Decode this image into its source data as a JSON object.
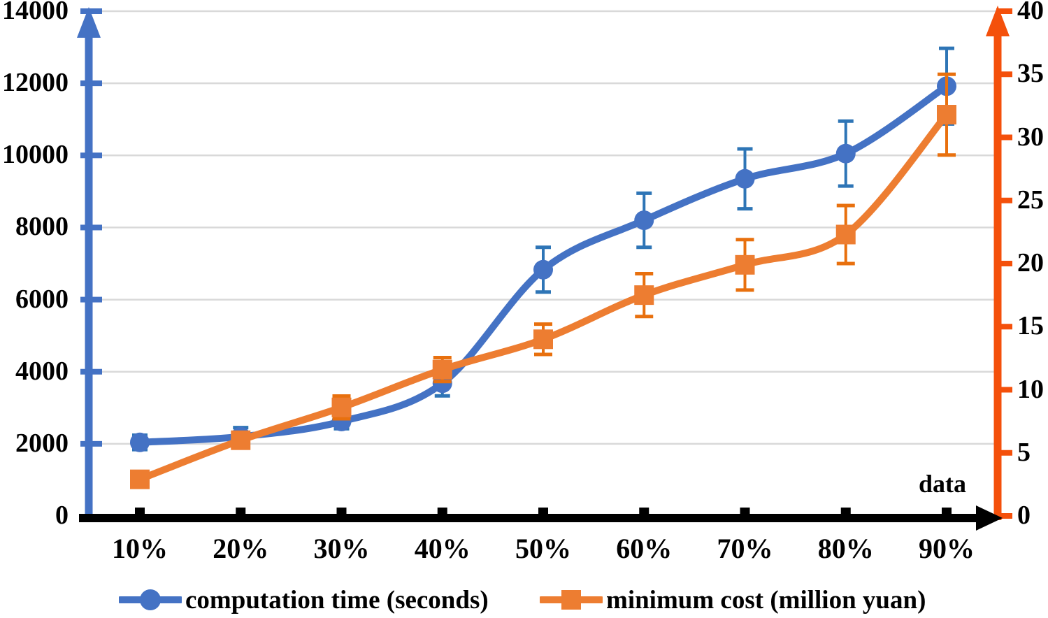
{
  "chart_data": {
    "type": "line",
    "title": "",
    "grid": "horizontal",
    "gridline_color": "#D9D9D9",
    "background_color": "#FFFFFF",
    "legend_position": "bottom",
    "x_axis": {
      "label": "data",
      "categories": [
        "10%",
        "20%",
        "30%",
        "40%",
        "50%",
        "60%",
        "70%",
        "80%",
        "90%"
      ],
      "line_color": "#000000",
      "arrow": "right"
    },
    "left_axis": {
      "min": 0,
      "max": 14000,
      "step": 2000,
      "tick_labels": [
        "0",
        "2000",
        "4000",
        "6000",
        "8000",
        "10000",
        "12000",
        "14000"
      ],
      "color": "#4472C4",
      "arrow": "up"
    },
    "right_axis": {
      "min": 0,
      "max": 40,
      "step": 5,
      "tick_labels": [
        "0",
        "5",
        "10",
        "15",
        "20",
        "25",
        "30",
        "35",
        "40"
      ],
      "color": "#F4500B",
      "arrow": "up"
    },
    "series": [
      {
        "name": "computation time (seconds)",
        "axis": "left",
        "color": "#4472C4",
        "error_color": "#2E75B6",
        "marker": "circle",
        "smooth": true,
        "values": [
          2040,
          2200,
          2620,
          3680,
          6830,
          8200,
          9350,
          10050,
          11920
        ],
        "errors": [
          200,
          250,
          200,
          350,
          620,
          750,
          830,
          900,
          1050
        ]
      },
      {
        "name": "minimum cost (million yuan)",
        "axis": "right",
        "color": "#ED7D31",
        "error_color": "#E8700E",
        "marker": "square",
        "smooth": true,
        "values": [
          2.9,
          6.0,
          8.6,
          11.6,
          14.0,
          17.5,
          19.9,
          22.3,
          31.8
        ],
        "errors": [
          0,
          0.6,
          0.9,
          0.95,
          1.2,
          1.7,
          2.0,
          2.3,
          3.2
        ]
      }
    ]
  }
}
